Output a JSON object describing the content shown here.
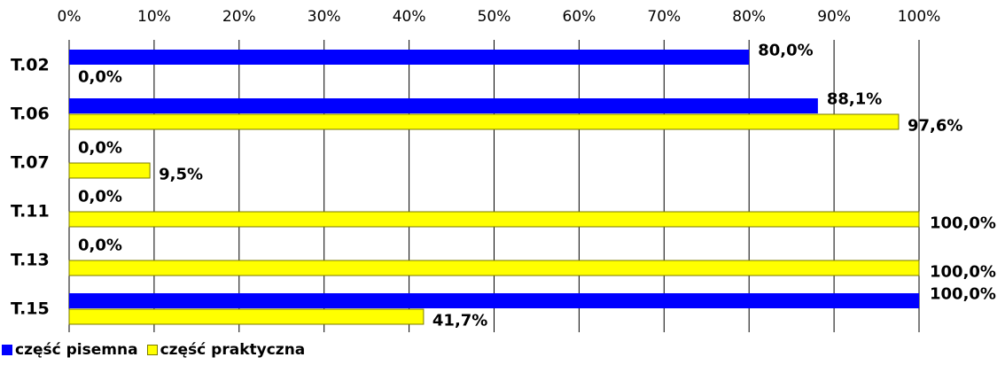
{
  "chart_data": {
    "type": "bar",
    "orientation": "horizontal",
    "categories": [
      "T.02",
      "T.06",
      "T.07",
      "T.11",
      "T.13",
      "T.15"
    ],
    "series": [
      {
        "name": "część pisemna",
        "color": "#0000FF",
        "values": [
          80.0,
          88.1,
          0.0,
          0.0,
          0.0,
          100.0
        ],
        "labels": [
          "80,0%",
          "88,1%",
          "0,0%",
          "0,0%",
          "0,0%",
          "100,0%"
        ]
      },
      {
        "name": "część praktyczna",
        "color": "#FFFF00",
        "values": [
          0.0,
          97.6,
          9.5,
          100.0,
          100.0,
          41.7
        ],
        "labels": [
          "0,0%",
          "97,6%",
          "9,5%",
          "100,0%",
          "100,0%",
          "41,7%"
        ]
      }
    ],
    "xlim": [
      0,
      100
    ],
    "xticks": [
      "0%",
      "10%",
      "20%",
      "30%",
      "40%",
      "50%",
      "60%",
      "70%",
      "80%",
      "90%",
      "100%"
    ],
    "xaxis_position": "top",
    "grid": true,
    "legend": "bottom-left"
  }
}
